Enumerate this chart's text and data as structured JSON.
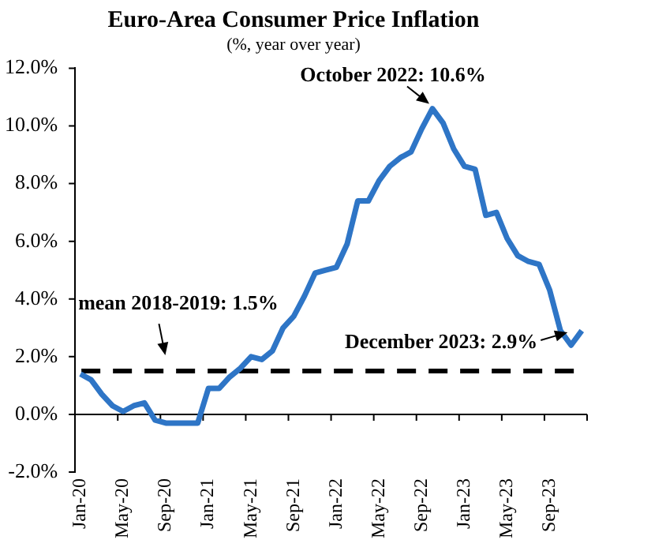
{
  "chart_data": {
    "type": "line",
    "title": "Euro-Area Consumer Price Inflation",
    "subtitle": "(%, year over year)",
    "categories": [
      "Jan-20",
      null,
      null,
      null,
      "May-20",
      null,
      null,
      null,
      "Sep-20",
      null,
      null,
      null,
      "Jan-21",
      null,
      null,
      null,
      "May-21",
      null,
      null,
      null,
      "Sep-21",
      null,
      null,
      null,
      "Jan-22",
      null,
      null,
      null,
      "May-22",
      null,
      null,
      null,
      "Sep-22",
      null,
      null,
      null,
      "Jan-23",
      null,
      null,
      null,
      "May-23",
      null,
      null,
      null,
      "Sep-23",
      null,
      null,
      null
    ],
    "series": [
      {
        "color": "#2e75c6",
        "values": [
          1.4,
          1.2,
          0.7,
          0.3,
          0.1,
          0.3,
          0.4,
          -0.2,
          -0.3,
          -0.3,
          -0.3,
          -0.3,
          0.9,
          0.9,
          1.3,
          1.6,
          2.0,
          1.9,
          2.2,
          3.0,
          3.4,
          4.1,
          4.9,
          5.0,
          5.1,
          5.9,
          7.4,
          7.4,
          8.1,
          8.6,
          8.9,
          9.1,
          9.9,
          10.6,
          10.1,
          9.2,
          8.6,
          8.5,
          6.9,
          7.0,
          6.1,
          5.5,
          5.3,
          5.2,
          4.3,
          2.9,
          2.4,
          2.9
        ]
      }
    ],
    "ylim": [
      -2,
      12
    ],
    "yticks": [
      {
        "value": -2,
        "label": "-2.0%"
      },
      {
        "value": 0,
        "label": "0.0%"
      },
      {
        "value": 2,
        "label": "2.0%"
      },
      {
        "value": 4,
        "label": "4.0%"
      },
      {
        "value": 6,
        "label": "6.0%"
      },
      {
        "value": 8,
        "label": "8.0%"
      },
      {
        "value": 10,
        "label": "10.0%"
      },
      {
        "value": 12,
        "label": "12.0%"
      }
    ],
    "legend": false,
    "marker": "none",
    "line_style": "solid",
    "ref_lines": [
      {
        "axis": "y",
        "value": 1.5,
        "label": "mean 2018-2019: 1.5%",
        "color": "#000000",
        "line_style": "dashed"
      }
    ],
    "annotations": [
      "October 2022: 10.6%",
      "December 2023: 2.9%"
    ]
  }
}
